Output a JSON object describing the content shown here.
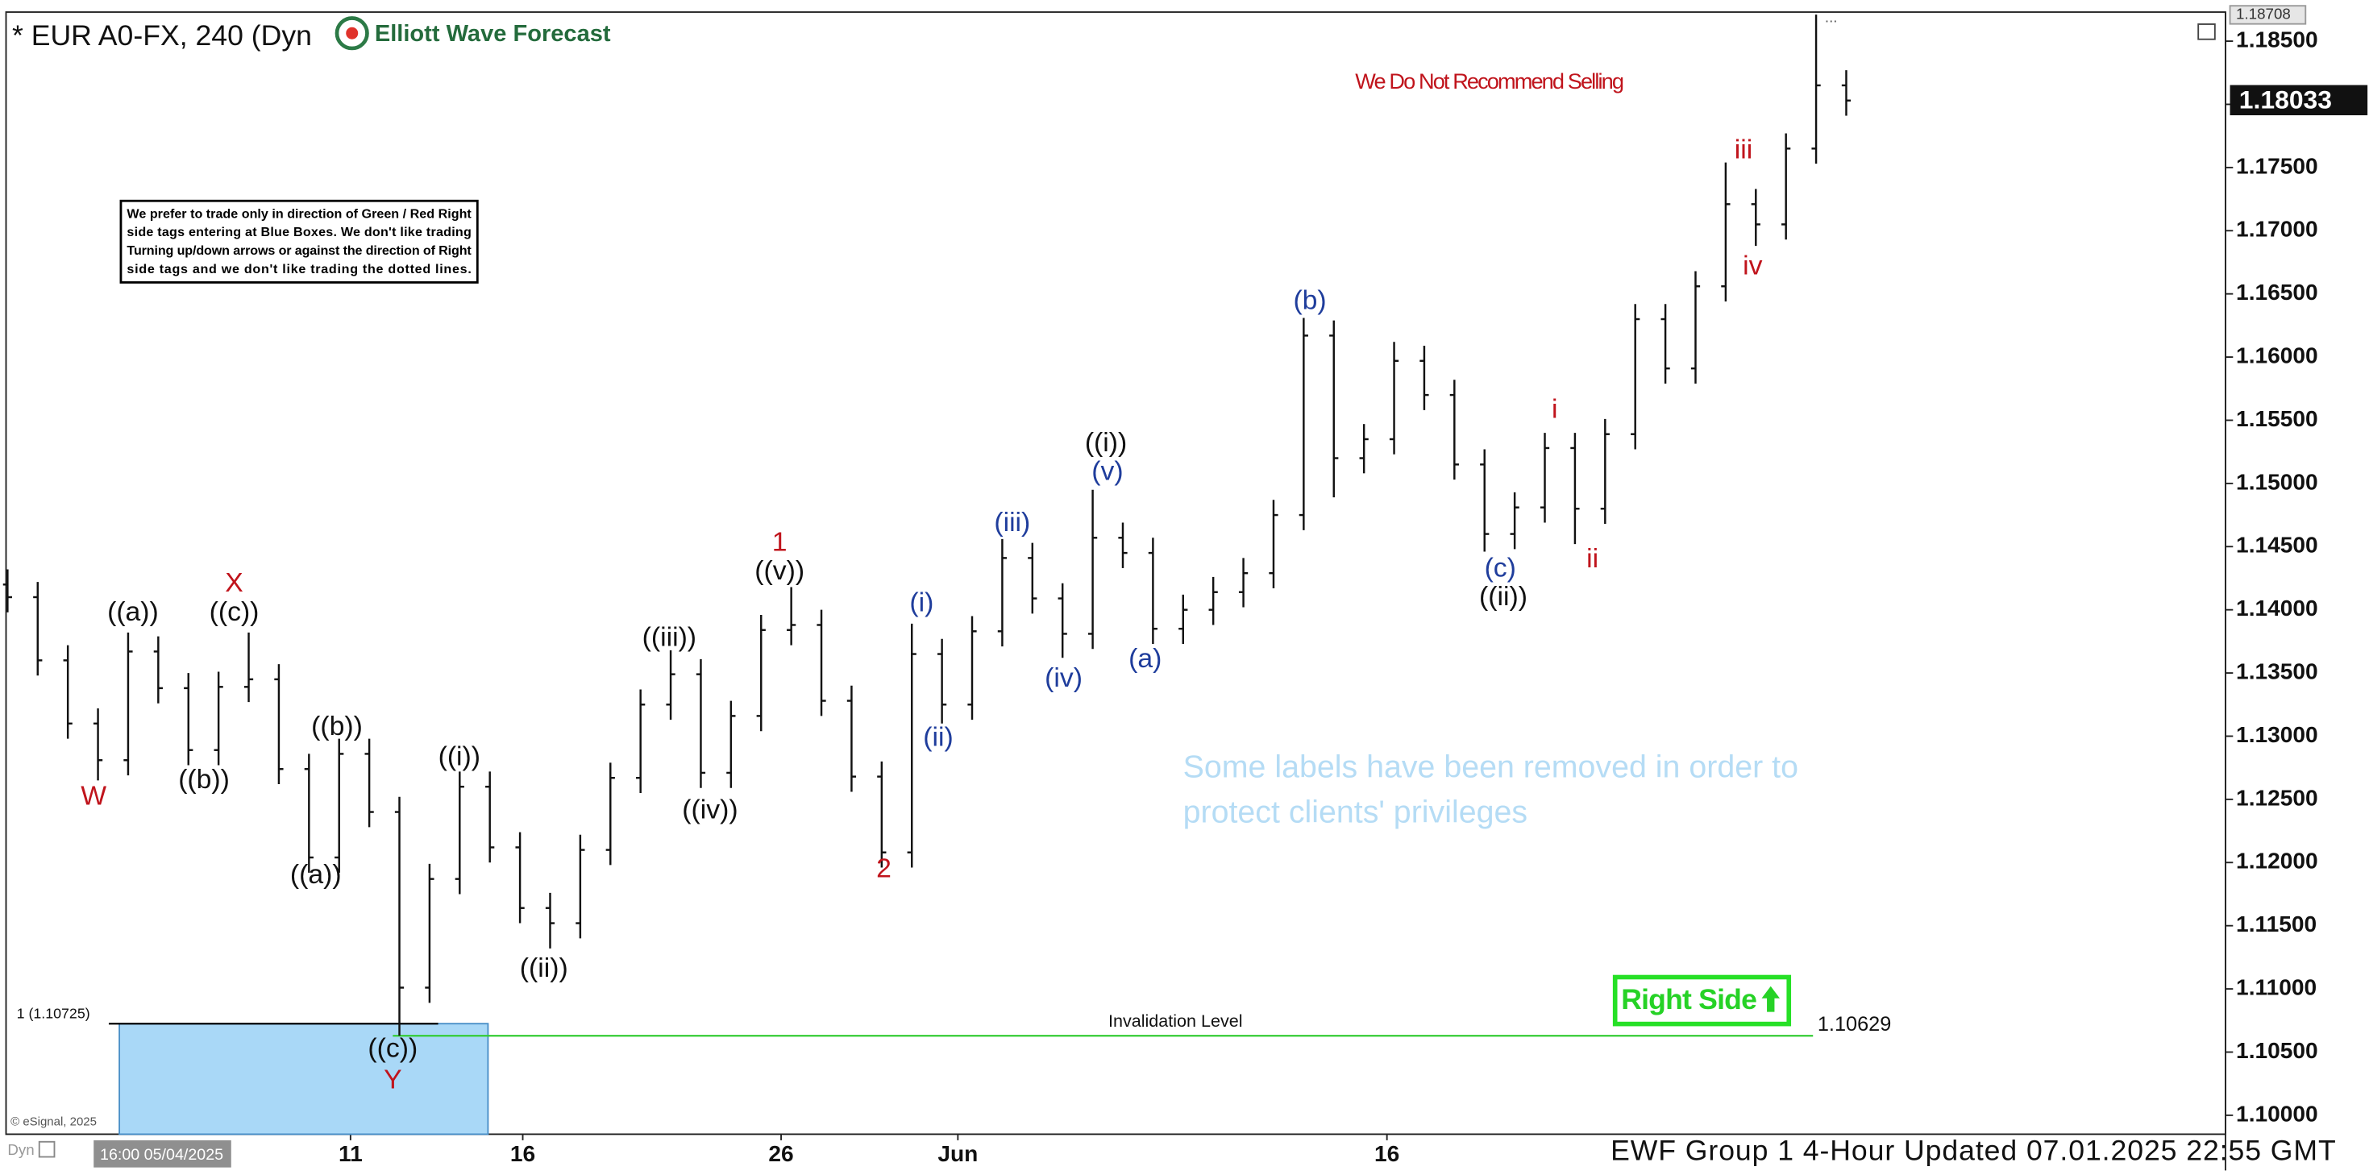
{
  "chart_data": {
    "type": "ohlc",
    "title": "* EUR A0-FX, 240 (Dyn",
    "logo": "Elliott Wave Forecast",
    "warning": "We Do Not Recommend Selling",
    "note": [
      "We prefer to trade only in direction of Green / Red Right",
      "side tags entering at Blue Boxes. We don't like trading",
      "Turning up/down arrows or against the direction of Right",
      "side tags and we don't like trading the dotted lines."
    ],
    "removed_notice": [
      "Some labels have been removed in order to",
      "protect clients' privileges"
    ],
    "right_side": "Right Side",
    "footer": "EWF Group 1 4-Hour Updated 07.01.2025 22:55 GMT",
    "copyright": "© eSignal, 2025",
    "interval_label": "Dyn",
    "start_date": "16:00 05/04/2025",
    "x_labels": [
      "11",
      "16",
      "26",
      "Jun",
      "16"
    ],
    "ylim": [
      1.0985,
      1.1873
    ],
    "yticks": [
      {
        "value": 1.1,
        "label": "1.10000"
      },
      {
        "value": 1.105,
        "label": "1.10500"
      },
      {
        "value": 1.11,
        "label": "1.11000"
      },
      {
        "value": 1.115,
        "label": "1.11500"
      },
      {
        "value": 1.12,
        "label": "1.12000"
      },
      {
        "value": 1.125,
        "label": "1.12500"
      },
      {
        "value": 1.13,
        "label": "1.13000"
      },
      {
        "value": 1.135,
        "label": "1.13500"
      },
      {
        "value": 1.14,
        "label": "1.14000"
      },
      {
        "value": 1.145,
        "label": "1.14500"
      },
      {
        "value": 1.15,
        "label": "1.15000"
      },
      {
        "value": 1.155,
        "label": "1.15500"
      },
      {
        "value": 1.16,
        "label": "1.16000"
      },
      {
        "value": 1.165,
        "label": "1.16500"
      },
      {
        "value": 1.17,
        "label": "1.17000"
      },
      {
        "value": 1.175,
        "label": "1.17500"
      },
      {
        "value": 1.18,
        "label": "1.18000"
      },
      {
        "value": 1.185,
        "label": "1.18500"
      }
    ],
    "high_marker": {
      "value": 1.18708,
      "label": "1.18708"
    },
    "last_price": {
      "value": 1.18033,
      "label": "1.18033"
    },
    "fib_level": {
      "value": 1.10725,
      "label": "1 (1.10725)"
    },
    "invalidation": {
      "value": 1.10629,
      "label": "1.10629",
      "text": "Invalidation Level",
      "color": "#33cc33"
    },
    "bar_color": "#111111",
    "box_color": "#a9d8f7",
    "bars": [
      [
        1.142,
        1.1432,
        1.1398,
        1.141
      ],
      [
        1.141,
        1.1422,
        1.1348,
        1.136
      ],
      [
        1.136,
        1.1372,
        1.1298,
        1.131
      ],
      [
        1.131,
        1.1322,
        1.1265,
        1.1281
      ],
      [
        1.1281,
        1.1382,
        1.1269,
        1.1367
      ],
      [
        1.1367,
        1.1379,
        1.1326,
        1.1338
      ],
      [
        1.1338,
        1.135,
        1.1277,
        1.1289
      ],
      [
        1.1289,
        1.1351,
        1.1277,
        1.1339
      ],
      [
        1.1339,
        1.1382,
        1.1327,
        1.1345
      ],
      [
        1.1345,
        1.1357,
        1.1262,
        1.1274
      ],
      [
        1.1274,
        1.1286,
        1.1192,
        1.1204
      ],
      [
        1.1204,
        1.1298,
        1.1192,
        1.1286
      ],
      [
        1.1286,
        1.1298,
        1.1228,
        1.124
      ],
      [
        1.124,
        1.1252,
        1.1063,
        1.1101
      ],
      [
        1.1101,
        1.1199,
        1.1089,
        1.1187
      ],
      [
        1.1187,
        1.1272,
        1.1175,
        1.126
      ],
      [
        1.126,
        1.1272,
        1.12,
        1.1212
      ],
      [
        1.1212,
        1.1224,
        1.1152,
        1.1164
      ],
      [
        1.1164,
        1.1176,
        1.1132,
        1.1152
      ],
      [
        1.1152,
        1.1222,
        1.114,
        1.121
      ],
      [
        1.121,
        1.1279,
        1.1198,
        1.1267
      ],
      [
        1.1267,
        1.1337,
        1.1255,
        1.1325
      ],
      [
        1.1325,
        1.1368,
        1.1313,
        1.1349
      ],
      [
        1.1349,
        1.1361,
        1.1259,
        1.1271
      ],
      [
        1.1271,
        1.1328,
        1.1259,
        1.1316
      ],
      [
        1.1316,
        1.1396,
        1.1304,
        1.1384
      ],
      [
        1.1384,
        1.1418,
        1.1372,
        1.1388
      ],
      [
        1.1388,
        1.14,
        1.1316,
        1.1328
      ],
      [
        1.1328,
        1.134,
        1.1256,
        1.1268
      ],
      [
        1.1268,
        1.128,
        1.1196,
        1.1208
      ],
      [
        1.1208,
        1.1389,
        1.1196,
        1.1365
      ],
      [
        1.1365,
        1.1377,
        1.131,
        1.1325
      ],
      [
        1.1325,
        1.1395,
        1.1313,
        1.1383
      ],
      [
        1.1383,
        1.1456,
        1.1371,
        1.1441
      ],
      [
        1.1441,
        1.1453,
        1.1397,
        1.1409
      ],
      [
        1.1409,
        1.1421,
        1.1362,
        1.1381
      ],
      [
        1.1381,
        1.1495,
        1.1369,
        1.1457
      ],
      [
        1.1457,
        1.1469,
        1.1433,
        1.1445
      ],
      [
        1.1445,
        1.1457,
        1.1373,
        1.1385
      ],
      [
        1.1385,
        1.1412,
        1.1373,
        1.14
      ],
      [
        1.14,
        1.1426,
        1.1388,
        1.1414
      ],
      [
        1.1414,
        1.1441,
        1.1402,
        1.1429
      ],
      [
        1.1429,
        1.1487,
        1.1417,
        1.1475
      ],
      [
        1.1475,
        1.1631,
        1.1463,
        1.1617
      ],
      [
        1.1617,
        1.1629,
        1.1489,
        1.152
      ],
      [
        1.152,
        1.1547,
        1.1508,
        1.1535
      ],
      [
        1.1535,
        1.1612,
        1.1523,
        1.1597
      ],
      [
        1.1597,
        1.1609,
        1.1558,
        1.157
      ],
      [
        1.157,
        1.1582,
        1.1503,
        1.1515
      ],
      [
        1.1515,
        1.1527,
        1.1446,
        1.146
      ],
      [
        1.146,
        1.1493,
        1.1448,
        1.1481
      ],
      [
        1.1481,
        1.154,
        1.1469,
        1.1528
      ],
      [
        1.1528,
        1.154,
        1.1452,
        1.148
      ],
      [
        1.148,
        1.1551,
        1.1468,
        1.1539
      ],
      [
        1.1539,
        1.1642,
        1.1527,
        1.163
      ],
      [
        1.163,
        1.1642,
        1.1579,
        1.1591
      ],
      [
        1.1591,
        1.1668,
        1.1579,
        1.1656
      ],
      [
        1.1656,
        1.1754,
        1.1644,
        1.1721
      ],
      [
        1.1721,
        1.1733,
        1.1688,
        1.1705
      ],
      [
        1.1705,
        1.1777,
        1.1693,
        1.1765
      ],
      [
        1.1765,
        1.1871,
        1.1753,
        1.1815
      ],
      [
        1.1815,
        1.1827,
        1.1791,
        1.1803
      ]
    ],
    "wave_labels": [
      {
        "text": "W",
        "color": "#c0141c"
      },
      {
        "text": "((a))",
        "color": "#111111"
      },
      {
        "text": "X",
        "color": "#c0141c"
      },
      {
        "text": "((c))",
        "color": "#111111"
      },
      {
        "text": "((b))",
        "color": "#111111"
      },
      {
        "text": "((b))",
        "color": "#111111"
      },
      {
        "text": "((a))",
        "color": "#111111"
      },
      {
        "text": "((i))",
        "color": "#111111"
      },
      {
        "text": "((c))",
        "color": "#111111"
      },
      {
        "text": "Y",
        "color": "#c0141c"
      },
      {
        "text": "((ii))",
        "color": "#111111"
      },
      {
        "text": "((iii))",
        "color": "#111111"
      },
      {
        "text": "((iv))",
        "color": "#111111"
      },
      {
        "text": "1",
        "color": "#c0141c"
      },
      {
        "text": "((v))",
        "color": "#111111"
      },
      {
        "text": "2",
        "color": "#c0141c"
      },
      {
        "text": "(i)",
        "color": "#1f3d9c"
      },
      {
        "text": "(ii)",
        "color": "#1f3d9c"
      },
      {
        "text": "(iii)",
        "color": "#1f3d9c"
      },
      {
        "text": "(iv)",
        "color": "#1f3d9c"
      },
      {
        "text": "((i))",
        "color": "#111111"
      },
      {
        "text": "(v)",
        "color": "#1f3d9c"
      },
      {
        "text": "(a)",
        "color": "#1f3d9c"
      },
      {
        "text": "(b)",
        "color": "#1f3d9c"
      },
      {
        "text": "(c)",
        "color": "#1f3d9c"
      },
      {
        "text": "((ii))",
        "color": "#111111"
      },
      {
        "text": "i",
        "color": "#c0141c"
      },
      {
        "text": "ii",
        "color": "#c0141c"
      },
      {
        "text": "iii",
        "color": "#c0141c"
      },
      {
        "text": "iv",
        "color": "#c0141c"
      }
    ]
  }
}
